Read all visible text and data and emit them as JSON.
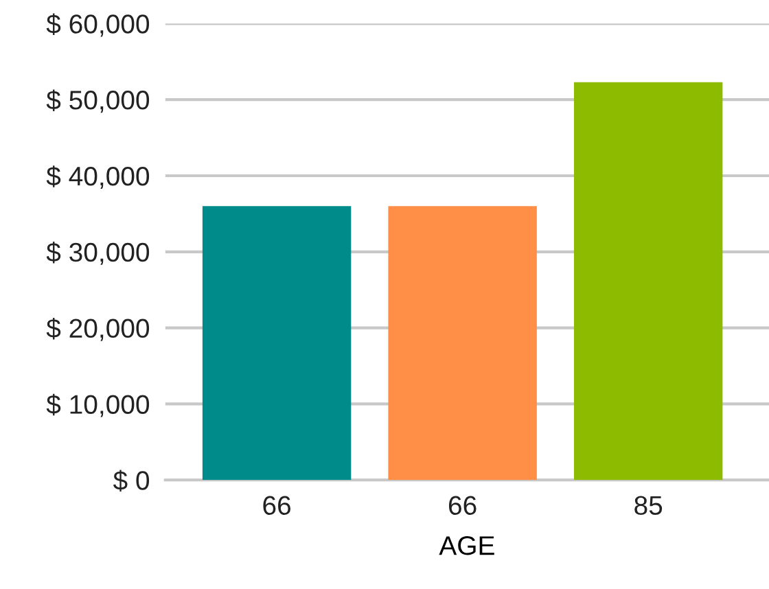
{
  "chart_data": {
    "type": "bar",
    "xlabel": "AGE",
    "categories": [
      "66",
      "66",
      "85"
    ],
    "values": [
      36000,
      36000,
      52300
    ],
    "colors": [
      "#008b8b",
      "#ff8f47",
      "#8cbb00"
    ],
    "ylim": [
      0,
      60000
    ],
    "yticks": [
      {
        "value": 0,
        "label": "$ 0"
      },
      {
        "value": 10000,
        "label": "$ 10,000"
      },
      {
        "value": 20000,
        "label": "$ 20,000"
      },
      {
        "value": 30000,
        "label": "$ 30,000"
      },
      {
        "value": 40000,
        "label": "$ 40,000"
      },
      {
        "value": 50000,
        "label": "$ 50,000"
      },
      {
        "value": 60000,
        "label": "$ 60,000"
      }
    ],
    "grid": "y",
    "legend": false
  }
}
